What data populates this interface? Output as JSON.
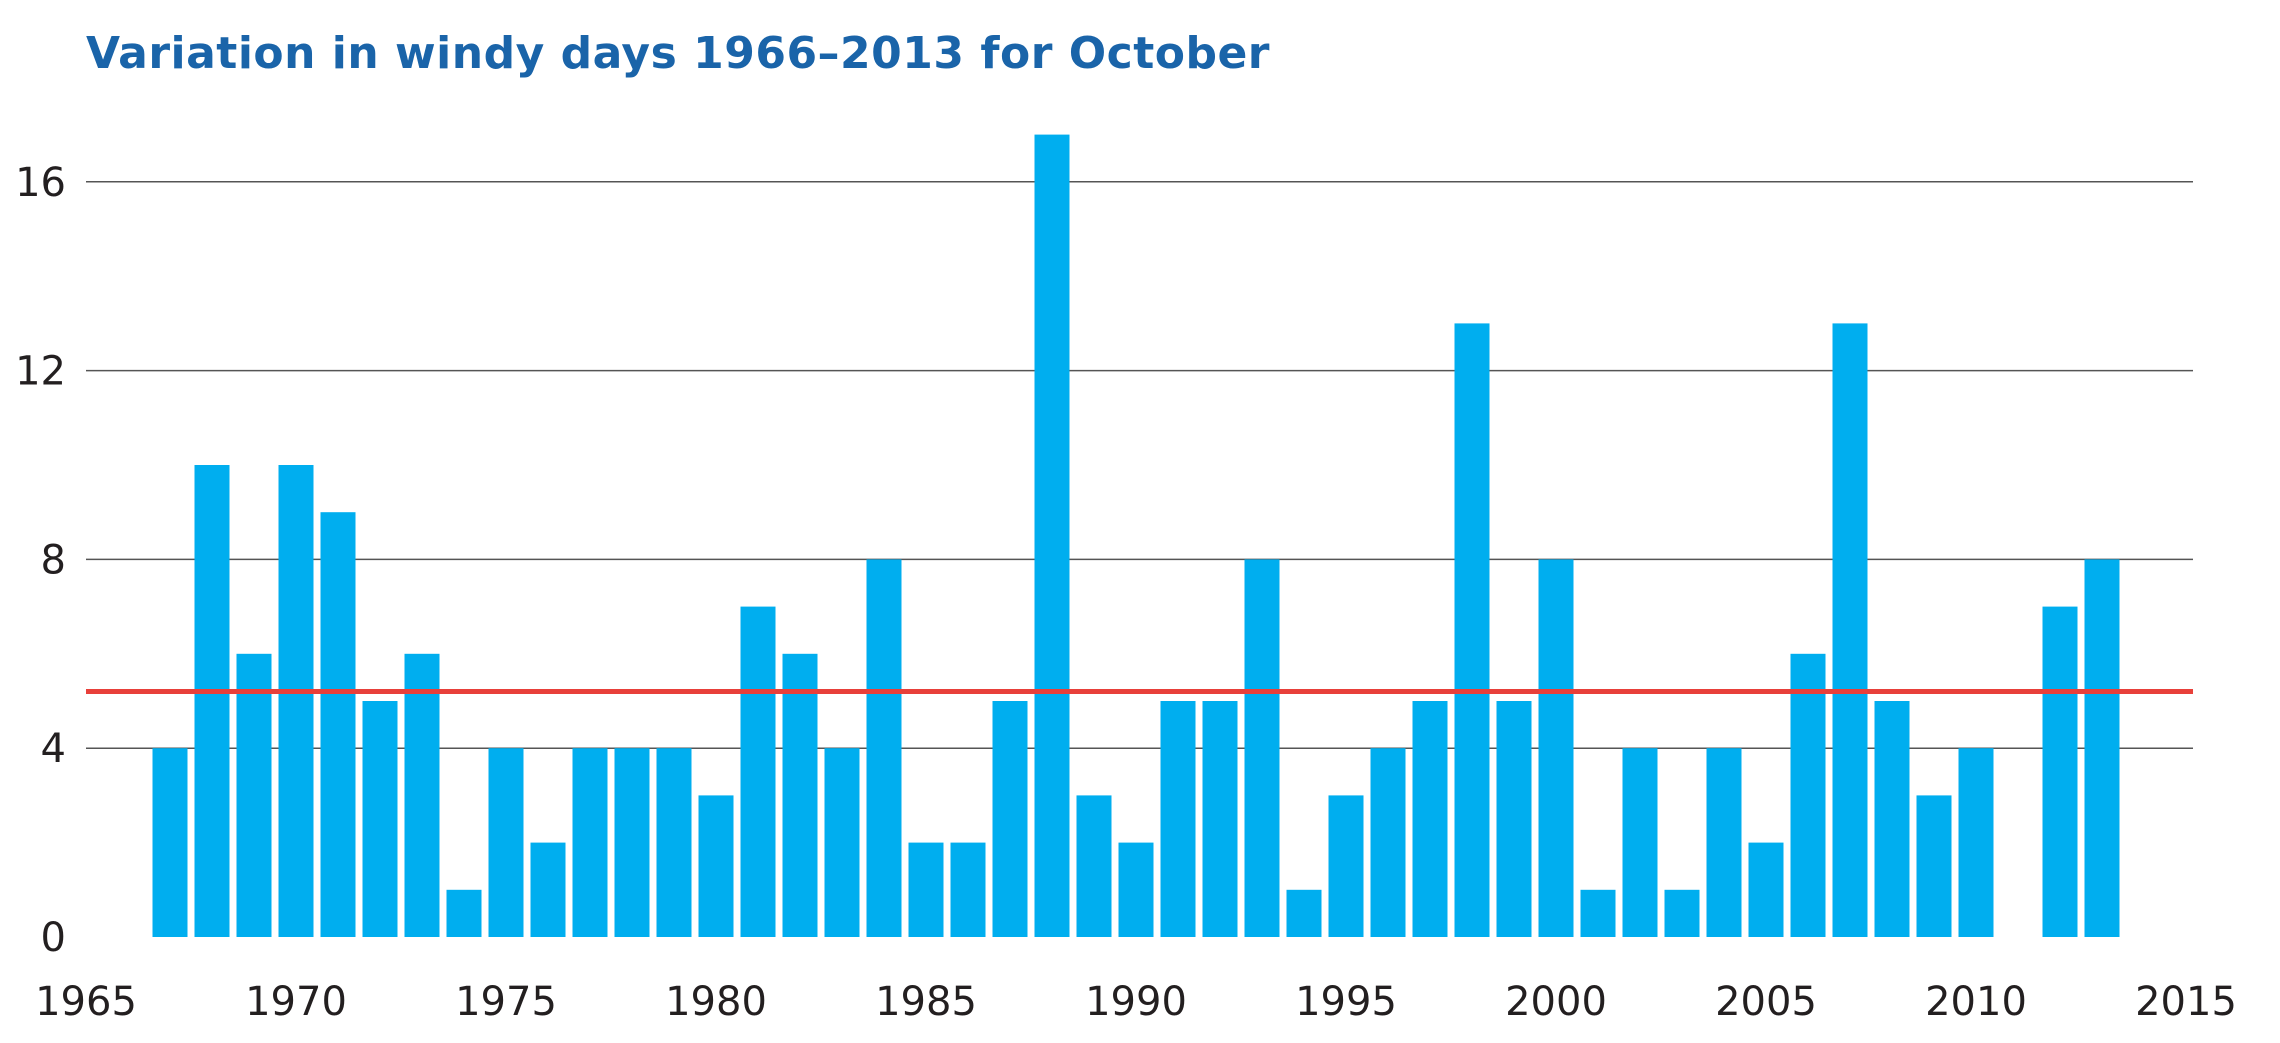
{
  "chart_data": {
    "type": "bar",
    "title": "Variation in windy days 1966–2013 for October",
    "xlabel": "",
    "ylabel": "",
    "xlim": [
      1965,
      2015
    ],
    "ylim": [
      0,
      17
    ],
    "x_ticks": [
      "1965",
      "1970",
      "1975",
      "1980",
      "1985",
      "1990",
      "1995",
      "2000",
      "2005",
      "2010",
      "2015"
    ],
    "y_ticks": [
      "0",
      "4",
      "8",
      "12",
      "16"
    ],
    "grid": "horizontal",
    "x": [
      1967,
      1968,
      1969,
      1970,
      1971,
      1972,
      1973,
      1974,
      1975,
      1976,
      1977,
      1978,
      1979,
      1980,
      1981,
      1982,
      1983,
      1984,
      1985,
      1986,
      1987,
      1988,
      1989,
      1990,
      1991,
      1992,
      1993,
      1994,
      1995,
      1996,
      1997,
      1998,
      1999,
      2000,
      2001,
      2002,
      2003,
      2004,
      2005,
      2006,
      2007,
      2008,
      2009,
      2010,
      2011,
      2012,
      2013
    ],
    "values": [
      4,
      10,
      6,
      10,
      9,
      5,
      6,
      1,
      4,
      2,
      4,
      4,
      4,
      3,
      7,
      6,
      4,
      8,
      2,
      2,
      5,
      17,
      3,
      2,
      5,
      5,
      8,
      1,
      3,
      4,
      5,
      13,
      5,
      8,
      1,
      4,
      1,
      4,
      2,
      6,
      13,
      5,
      3,
      4,
      0,
      7,
      8
    ],
    "average_line": 5.2,
    "colors": {
      "bar": "#00aeef",
      "average": "#e8403a",
      "title": "#1a64a9",
      "grid": "#555555"
    }
  }
}
